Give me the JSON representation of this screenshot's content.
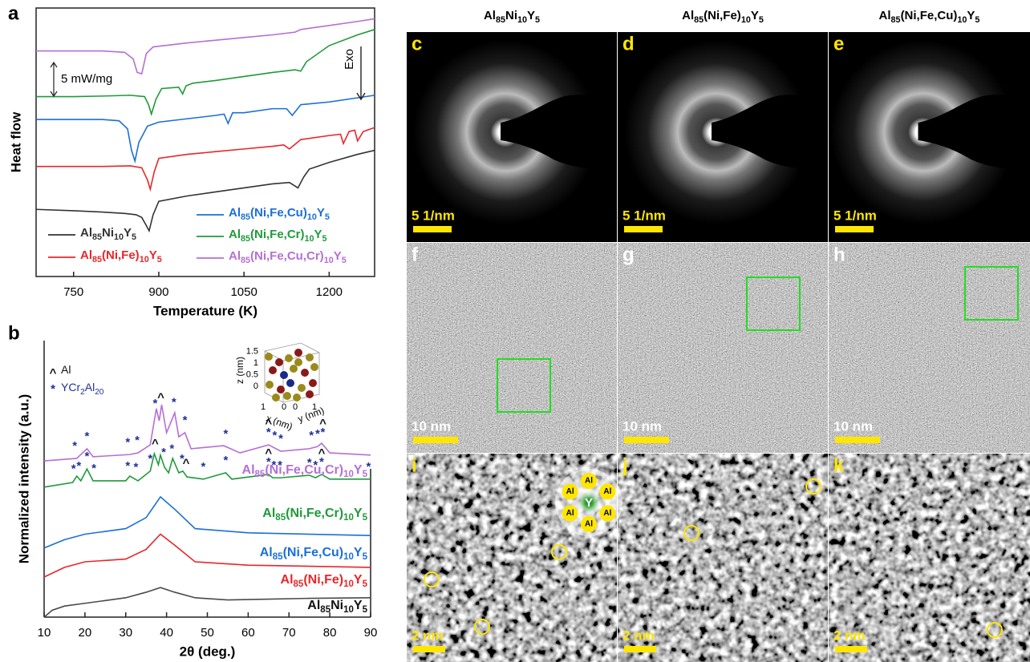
{
  "chart_data": [
    {
      "type": "line",
      "panel": "a",
      "xlabel": "Temperature (K)",
      "ylabel": "Heat flow",
      "xlim": [
        684,
        1280
      ],
      "xticks": [
        750,
        900,
        1050,
        1200
      ],
      "ylim": [
        0,
        10
      ],
      "annotations": [
        "5 mW/mg",
        "Exo"
      ],
      "series": [
        {
          "name": "Al85Ni10Y5",
          "color": "#333333",
          "x": [
            684,
            750,
            800,
            840,
            860,
            870,
            878,
            883,
            890,
            900,
            950,
            1000,
            1050,
            1100,
            1130,
            1145,
            1155,
            1165,
            1200,
            1250,
            1280
          ],
          "values": [
            2.5,
            2.45,
            2.4,
            2.35,
            2.3,
            2.2,
            1.9,
            1.7,
            2.3,
            2.8,
            3.0,
            3.15,
            3.3,
            3.45,
            3.5,
            3.3,
            3.7,
            4.0,
            4.25,
            4.55,
            4.7
          ]
        },
        {
          "name": "Al85(Ni,Fe)10Y5",
          "color": "#e8262a",
          "x": [
            684,
            750,
            800,
            850,
            870,
            880,
            885,
            892,
            900,
            950,
            1000,
            1050,
            1100,
            1120,
            1130,
            1150,
            1200,
            1220,
            1225,
            1235,
            1245,
            1250,
            1260,
            1280
          ],
          "values": [
            4.1,
            4.1,
            4.1,
            4.12,
            4.05,
            3.6,
            3.25,
            3.9,
            4.4,
            4.55,
            4.65,
            4.75,
            4.85,
            4.9,
            4.75,
            5.1,
            5.25,
            5.3,
            4.95,
            5.4,
            5.45,
            5.05,
            5.4,
            5.55
          ]
        },
        {
          "name": "Al85(Ni,Fe,Cu)10Y5",
          "color": "#1a6fd6",
          "x": [
            684,
            750,
            800,
            830,
            845,
            852,
            858,
            865,
            880,
            900,
            1000,
            1015,
            1022,
            1030,
            1050,
            1100,
            1125,
            1135,
            1150,
            1200,
            1280
          ],
          "values": [
            5.85,
            5.85,
            5.85,
            5.8,
            5.5,
            4.7,
            4.3,
            5.0,
            5.6,
            5.75,
            6.0,
            6.05,
            5.7,
            6.1,
            6.1,
            6.25,
            6.25,
            6.0,
            6.4,
            6.5,
            6.75
          ]
        },
        {
          "name": "Al85(Ni,Fe,Cr)10Y5",
          "color": "#1f9a3a",
          "x": [
            684,
            750,
            800,
            850,
            875,
            882,
            887,
            895,
            905,
            935,
            942,
            948,
            960,
            1000,
            1050,
            1100,
            1140,
            1150,
            1160,
            1200,
            1250,
            1280
          ],
          "values": [
            6.7,
            6.7,
            6.72,
            6.75,
            6.7,
            6.4,
            6.05,
            6.6,
            7.0,
            7.05,
            6.8,
            7.1,
            7.2,
            7.3,
            7.45,
            7.6,
            7.7,
            7.65,
            8.0,
            8.6,
            9.0,
            9.2
          ]
        },
        {
          "name": "Al85(Ni,Fe,Cu,Cr)10Y5",
          "color": "#b46fd6",
          "x": [
            684,
            750,
            800,
            840,
            855,
            862,
            870,
            878,
            890,
            950,
            1000,
            1050,
            1100,
            1140,
            1150,
            1200,
            1250,
            1280
          ],
          "values": [
            8.4,
            8.4,
            8.4,
            8.35,
            8.1,
            7.6,
            7.55,
            8.3,
            8.55,
            8.7,
            8.8,
            8.9,
            9.0,
            9.1,
            9.2,
            9.35,
            9.5,
            9.6
          ]
        }
      ]
    },
    {
      "type": "line",
      "panel": "b",
      "xlabel": "2θ (deg.)",
      "ylabel": "Normalized intensity (a.u.)",
      "xlim": [
        10,
        90
      ],
      "xticks": [
        10,
        20,
        30,
        40,
        50,
        60,
        70,
        80,
        90
      ],
      "ylim": [
        0,
        10
      ],
      "peak_legend": [
        {
          "symbol": "^",
          "label": "Al",
          "color": "#111111"
        },
        {
          "symbol": "*",
          "label": "YCr2Al20",
          "color": "#1f2f9a"
        }
      ],
      "series": [
        {
          "name": "Al85Ni10Y5",
          "color": "#4a4a4a",
          "x": [
            10,
            12,
            15,
            20,
            25,
            30,
            35,
            38.5,
            42,
            47,
            55,
            65,
            75,
            90
          ],
          "values": [
            0,
            0.25,
            0.4,
            0.5,
            0.6,
            0.7,
            0.9,
            1.07,
            0.9,
            0.7,
            0.62,
            0.65,
            0.68,
            0.7
          ]
        },
        {
          "name": "Al85(Ni,Fe)10Y5",
          "color": "#e8262a",
          "x": [
            10,
            15,
            20,
            25,
            30,
            35,
            38.5,
            42,
            47,
            60,
            90
          ],
          "values": [
            1.45,
            1.8,
            2.0,
            2.05,
            2.1,
            2.45,
            3.0,
            2.6,
            2.0,
            1.88,
            1.8
          ]
        },
        {
          "name": "Al85(Ni,Fe,Cu)10Y5",
          "color": "#1a6fd6",
          "x": [
            10,
            15,
            20,
            25,
            30,
            35,
            38.5,
            42,
            47,
            60,
            90
          ],
          "values": [
            2.5,
            2.8,
            3.0,
            3.1,
            3.2,
            3.6,
            4.35,
            3.9,
            3.2,
            3.05,
            2.95
          ]
        },
        {
          "name": "Al85(Ni,Fe,Cr)10Y5",
          "color": "#1f9a3a",
          "x": [
            10,
            17,
            18,
            19,
            20.5,
            22,
            30,
            31,
            33,
            36,
            37,
            38,
            38.5,
            39.5,
            40.5,
            41.5,
            43,
            44,
            45,
            49,
            54.5,
            56,
            65,
            66,
            68,
            75,
            76.5,
            78,
            80,
            90
          ],
          "values": [
            4.7,
            4.87,
            5.1,
            4.93,
            5.36,
            4.93,
            4.93,
            5.1,
            4.93,
            5.28,
            5.91,
            5.51,
            5.86,
            5.42,
            5.22,
            5.74,
            5.22,
            5.28,
            5.07,
            4.99,
            5.22,
            4.99,
            5.16,
            5.04,
            5.04,
            5.13,
            5.04,
            5.16,
            4.99,
            4.99
          ],
          "peaks": [
            {
              "x": 17.2,
              "symbol": "*"
            },
            {
              "x": 18.5,
              "symbol": "*"
            },
            {
              "x": 20.5,
              "symbol": "*"
            },
            {
              "x": 22.2,
              "symbol": "*"
            },
            {
              "x": 30.5,
              "symbol": "*"
            },
            {
              "x": 32.5,
              "symbol": "*"
            },
            {
              "x": 36,
              "symbol": "*"
            },
            {
              "x": 37.2,
              "symbol": "^"
            },
            {
              "x": 39.3,
              "symbol": "*"
            },
            {
              "x": 41.3,
              "symbol": "*"
            },
            {
              "x": 43.8,
              "symbol": "*"
            },
            {
              "x": 44.8,
              "symbol": "^"
            },
            {
              "x": 49,
              "symbol": "*"
            },
            {
              "x": 54.5,
              "symbol": "*"
            },
            {
              "x": 65,
              "symbol": "*"
            },
            {
              "x": 65,
              "symbol": "^"
            },
            {
              "x": 66.3,
              "symbol": "*"
            },
            {
              "x": 67.8,
              "symbol": "*"
            },
            {
              "x": 75,
              "symbol": "*"
            },
            {
              "x": 76.5,
              "symbol": "*"
            },
            {
              "x": 78,
              "symbol": "*"
            },
            {
              "x": 78,
              "symbol": "^"
            },
            {
              "x": 89.5,
              "symbol": "*"
            }
          ]
        },
        {
          "name": "Al85(Ni,Fe,Cu,Cr)10Y5",
          "color": "#b46fd6",
          "x": [
            10,
            18,
            20.5,
            22,
            31,
            33,
            36,
            37.5,
            38.2,
            38.8,
            40,
            42,
            43,
            44.5,
            46,
            54,
            58,
            65,
            68,
            75,
            77,
            78,
            80,
            90
          ],
          "values": [
            5.65,
            5.74,
            6.09,
            5.8,
            5.88,
            5.94,
            6.23,
            7.54,
            7.1,
            7.68,
            6.67,
            7.39,
            6.52,
            6.67,
            6.09,
            6.2,
            5.94,
            6.23,
            6.0,
            6.09,
            6.17,
            6.29,
            5.94,
            5.86
          ],
          "peaks": [
            {
              "x": 17.5,
              "symbol": "*"
            },
            {
              "x": 20.5,
              "symbol": "*"
            },
            {
              "x": 30.5,
              "symbol": "*"
            },
            {
              "x": 32.8,
              "symbol": "*"
            },
            {
              "x": 37.2,
              "symbol": "*"
            },
            {
              "x": 38.6,
              "symbol": "^"
            },
            {
              "x": 41.8,
              "symbol": "*"
            },
            {
              "x": 44.5,
              "symbol": "*"
            },
            {
              "x": 54.5,
              "symbol": "*"
            },
            {
              "x": 65,
              "symbol": "*"
            },
            {
              "x": 65,
              "symbol": "^"
            },
            {
              "x": 66.5,
              "symbol": "*"
            },
            {
              "x": 68,
              "symbol": "*"
            },
            {
              "x": 75.5,
              "symbol": "*"
            },
            {
              "x": 77,
              "symbol": "*"
            },
            {
              "x": 78.3,
              "symbol": "*"
            },
            {
              "x": 78.3,
              "symbol": "^"
            }
          ]
        }
      ]
    }
  ],
  "inset_b": {
    "zlabel": "z (nm)",
    "xlabel": "x (nm)",
    "ylabel": "y (nm)",
    "zticks": [
      0,
      0.5,
      1,
      1.5
    ],
    "xticks": [
      1,
      0
    ],
    "yticks": [
      0,
      1
    ]
  },
  "columns": [
    "Al85Ni10Y5",
    "Al85(Ni,Fe)10Y5",
    "Al85(Ni,Fe,Cu)10Y5"
  ],
  "panels": [
    {
      "label": "c",
      "scale": "5 1/nm"
    },
    {
      "label": "d",
      "scale": "5 1/nm"
    },
    {
      "label": "e",
      "scale": "5 1/nm"
    },
    {
      "label": "f",
      "scale": "10 nm"
    },
    {
      "label": "g",
      "scale": "10 nm"
    },
    {
      "label": "h",
      "scale": "10 nm"
    },
    {
      "label": "i",
      "scale": "2 nm"
    },
    {
      "label": "j",
      "scale": "2 nm"
    },
    {
      "label": "k",
      "scale": "2 nm"
    }
  ],
  "inset_i": {
    "center": "Y",
    "neighbors": [
      "Al",
      "Al",
      "Al",
      "Al",
      "Al",
      "Al"
    ]
  }
}
